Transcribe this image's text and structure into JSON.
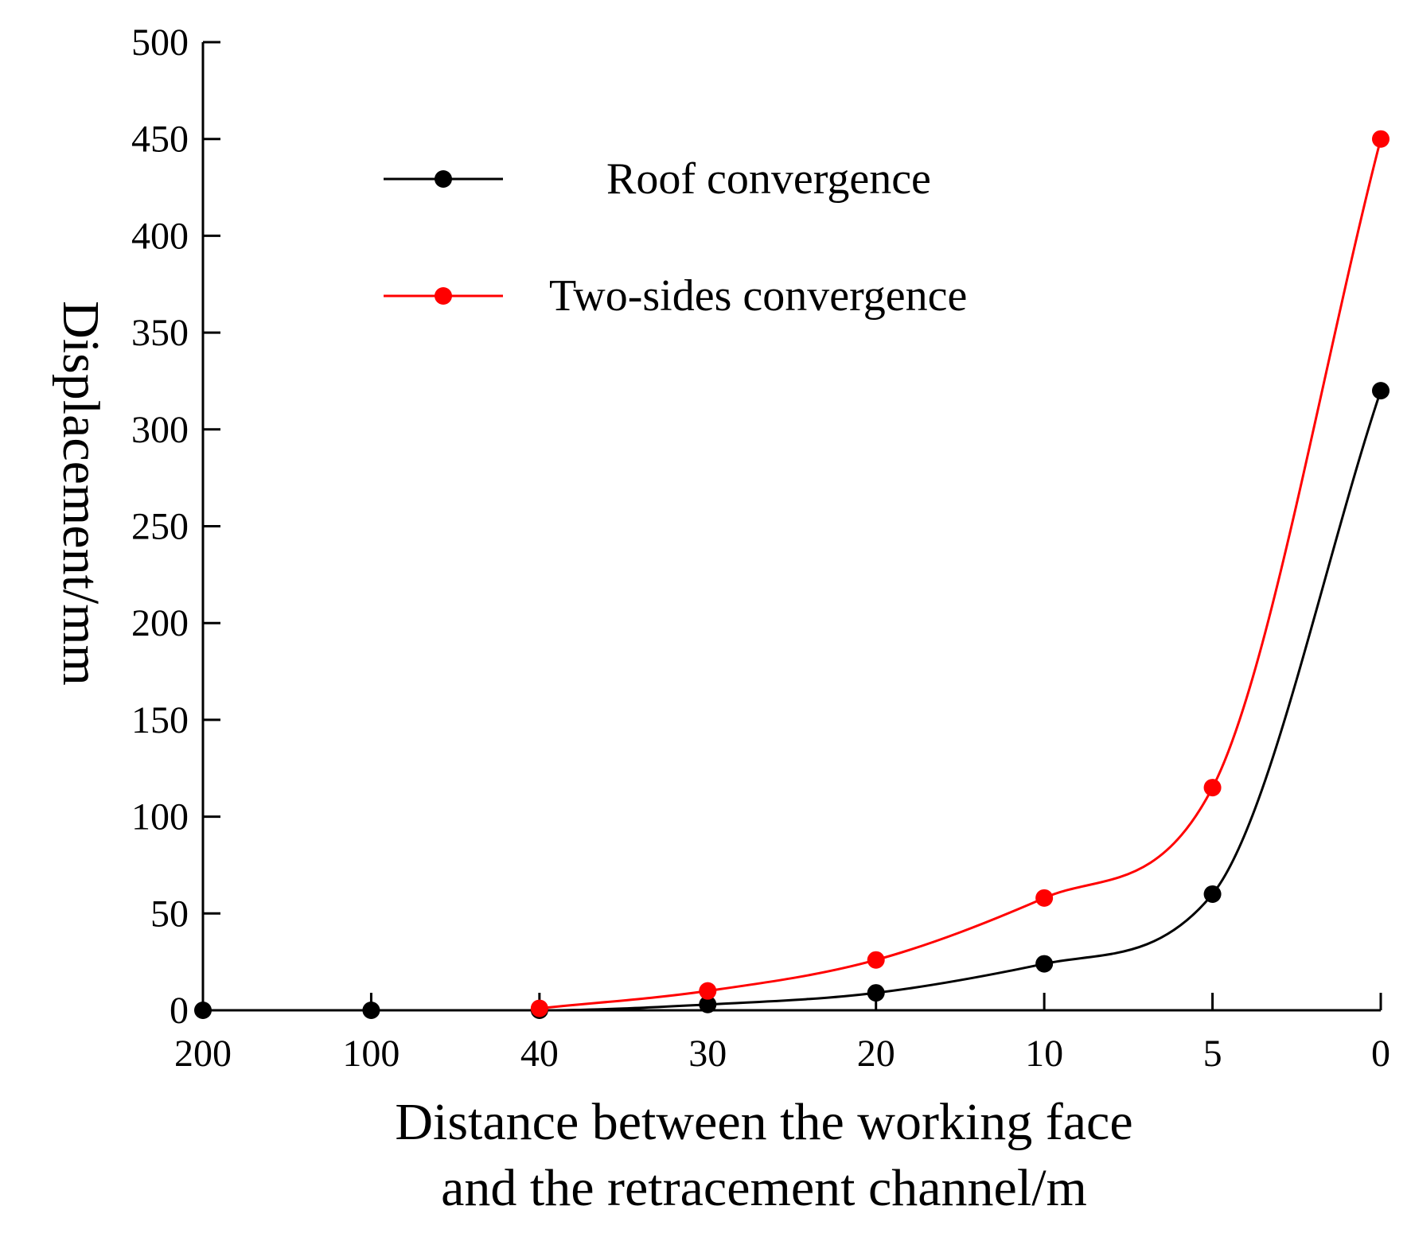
{
  "chart_data": {
    "type": "line",
    "title": "",
    "xlabel_lines": [
      "Distance between the working face",
      "and the retracement channel/m"
    ],
    "ylabel": "Displacement/mm",
    "categories": [
      "200",
      "100",
      "40",
      "30",
      "20",
      "10",
      "5",
      "0"
    ],
    "ylim": [
      0,
      500
    ],
    "yticks": [
      0,
      50,
      100,
      150,
      200,
      250,
      300,
      350,
      400,
      450,
      500
    ],
    "grid": false,
    "legend_position": "top-left inside",
    "series": [
      {
        "name": "Roof convergence",
        "color": "#000000",
        "values": [
          0,
          0,
          0,
          3,
          9,
          24,
          60,
          320
        ]
      },
      {
        "name": "Two-sides convergence",
        "color": "#ff0000",
        "values": [
          null,
          null,
          1,
          10,
          26,
          58,
          115,
          450
        ]
      }
    ]
  }
}
